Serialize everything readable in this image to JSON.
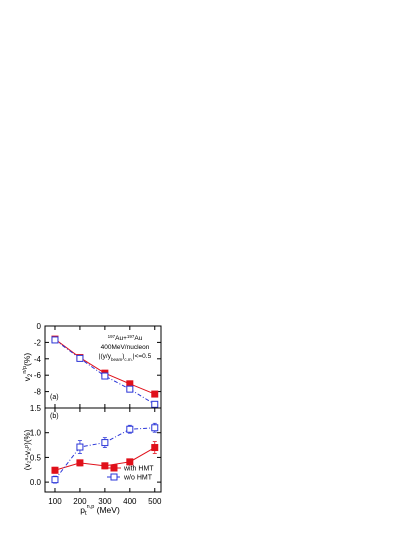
{
  "chart_data": [
    {
      "panel": "(a)",
      "type": "line",
      "ylabel_main": "v",
      "ylabel_sub": "2",
      "ylabel_sup": "n/p",
      "ylabel_tail": "(%)",
      "ylim": [
        -10,
        0
      ],
      "yticks": [
        0,
        -2,
        -4,
        -6,
        -8
      ],
      "ytick_labels": [
        "0",
        "-2",
        "-4",
        "-6",
        "-8"
      ],
      "xlim": [
        60,
        525
      ],
      "x": [
        100,
        200,
        300,
        400,
        500
      ],
      "series": [
        {
          "name": "with HMT",
          "color": "#e0101a",
          "marker": "filled-square",
          "line": "solid",
          "values": [
            -1.6,
            -3.85,
            -5.75,
            -7.05,
            -8.3
          ],
          "errors": [
            0.15,
            0.15,
            0.15,
            0.2,
            0.25
          ]
        },
        {
          "name": "w/o HMT",
          "color": "#2a35d8",
          "marker": "open-square",
          "line": "dash-dot",
          "values": [
            -1.7,
            -3.95,
            -6.1,
            -7.7,
            -9.55
          ],
          "errors": [
            0.15,
            0.15,
            0.2,
            0.2,
            0.3
          ]
        }
      ],
      "annotation_lines": [
        [
          {
            "t": "197",
            "sup": true
          },
          {
            "t": "Au+"
          },
          {
            "t": "197",
            "sup": true
          },
          {
            "t": "Au"
          }
        ],
        [
          {
            "t": "400MeV/nucleon"
          }
        ],
        [
          {
            "t": "|(y/y"
          },
          {
            "t": "beam",
            "sub": true
          },
          {
            "t": ")"
          },
          {
            "t": "c.m.",
            "sub": true
          },
          {
            "t": "|<=0.5"
          }
        ]
      ]
    },
    {
      "panel": "(b)",
      "type": "line",
      "ylabel": "(v₂ⁿ-v₂ᵖ)(%)",
      "ylim": [
        -0.2,
        1.5
      ],
      "yticks": [
        0.0,
        0.5,
        1.0,
        1.5
      ],
      "ytick_labels": [
        "0.0",
        "0.5",
        "1.0",
        "1.5"
      ],
      "xlim": [
        60,
        525
      ],
      "x": [
        100,
        200,
        300,
        400,
        500
      ],
      "xticks": [
        100,
        200,
        300,
        400,
        500
      ],
      "xtick_labels": [
        "100",
        "200",
        "300",
        "400",
        "500"
      ],
      "xlabel_main": "p",
      "xlabel_sub": "t",
      "xlabel_sup": "n,p",
      "xlabel_tail": " (MeV)",
      "legend_position": "bottom-right",
      "series": [
        {
          "name": "with HMT",
          "color": "#e0101a",
          "marker": "filled-square",
          "line": "solid",
          "values": [
            0.24,
            0.39,
            0.33,
            0.41,
            0.7
          ],
          "errors": [
            0.06,
            0.06,
            0.06,
            0.06,
            0.12
          ]
        },
        {
          "name": "w/o HMT",
          "color": "#2a35d8",
          "marker": "open-square",
          "line": "dash-dot",
          "values": [
            0.05,
            0.71,
            0.8,
            1.07,
            1.1
          ],
          "errors": [
            0.07,
            0.13,
            0.1,
            0.08,
            0.09
          ]
        }
      ]
    }
  ]
}
